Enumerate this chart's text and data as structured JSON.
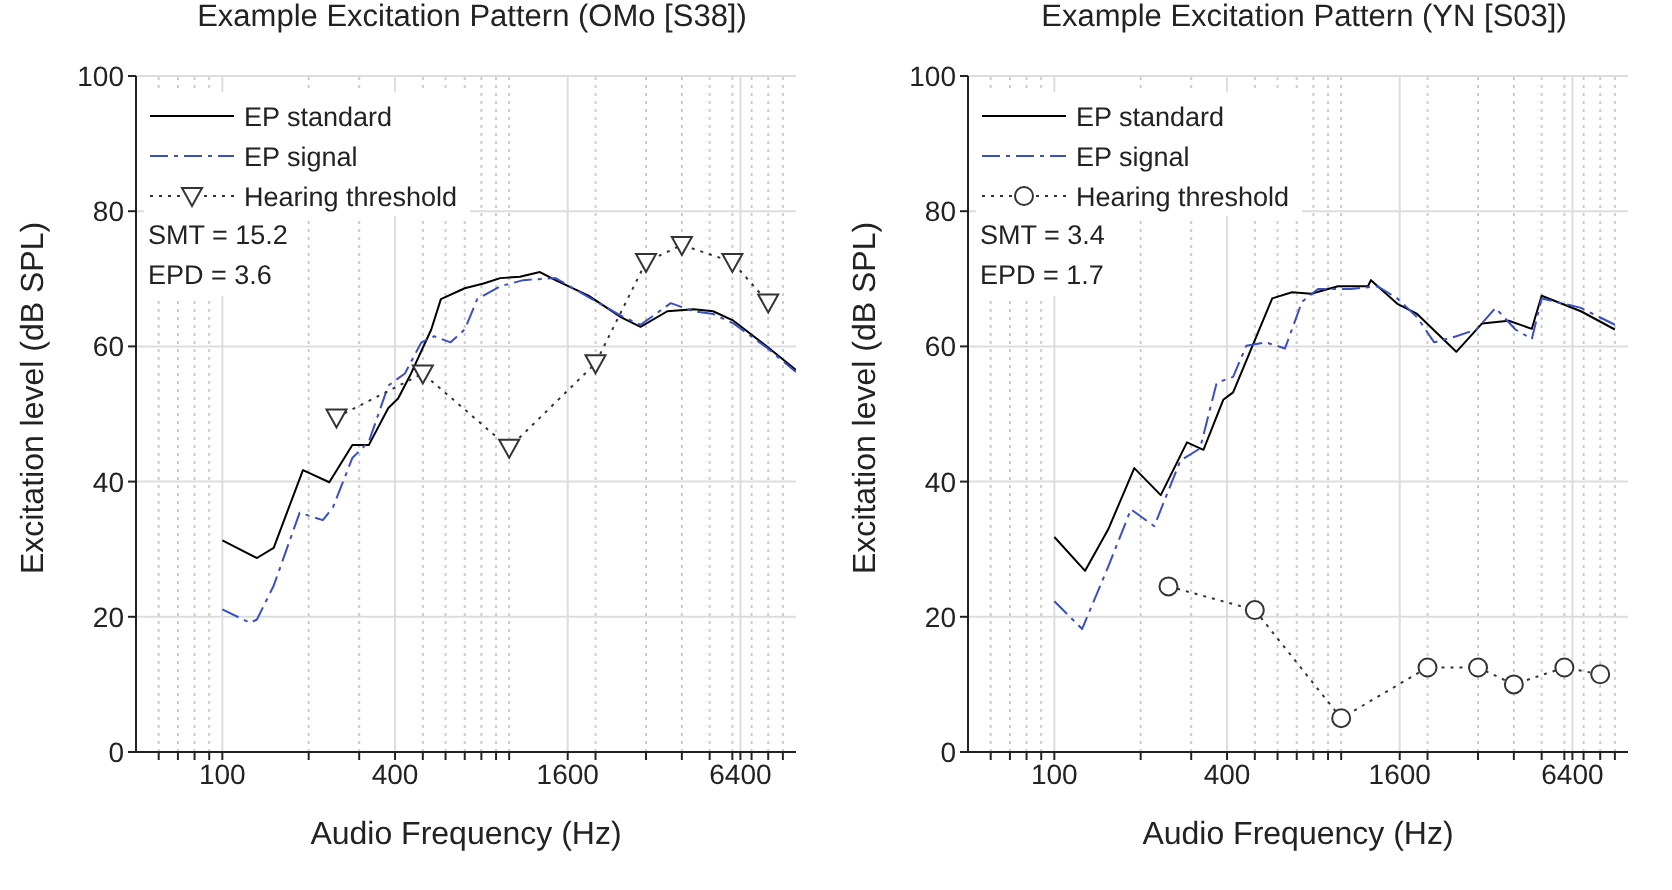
{
  "chart_data": [
    {
      "type": "line",
      "title": "Example Excitation Pattern (OMo [S38])",
      "xlabel": "Audio Frequency (Hz)",
      "ylabel": "Excitation level (dB SPL)",
      "log": "x",
      "grid": true,
      "legend": "top left",
      "xlim": [
        50,
        10000
      ],
      "ylim": [
        0,
        100
      ],
      "yticks": [
        0,
        20,
        40,
        60,
        80,
        100
      ],
      "xticks": [
        {
          "value": 60,
          "label": null
        },
        {
          "value": 70,
          "label": null
        },
        {
          "value": 80,
          "label": null
        },
        {
          "value": 90,
          "label": null
        },
        100,
        {
          "value": 200,
          "label": null
        },
        {
          "value": 300,
          "label": null
        },
        400,
        {
          "value": 500,
          "label": null
        },
        {
          "value": 600,
          "label": null
        },
        {
          "value": 700,
          "label": null
        },
        {
          "value": 800,
          "label": null
        },
        {
          "value": 900,
          "label": null
        },
        {
          "value": 1000,
          "label": null
        },
        1600,
        {
          "value": 2000,
          "label": null
        },
        {
          "value": 3000,
          "label": null
        },
        {
          "value": 4000,
          "label": null
        },
        {
          "value": 5000,
          "label": null
        },
        {
          "value": 6000,
          "label": null
        },
        6400,
        {
          "value": 7000,
          "label": null
        },
        {
          "value": 8000,
          "label": null
        },
        {
          "value": 9000,
          "label": null
        }
      ],
      "annotations": [
        "SMT = 15.2",
        "EPD = 3.6"
      ],
      "series": [
        {
          "name": "EP standard",
          "color": "#000000",
          "line_style": "solid",
          "marker": "none",
          "x": [
            100,
            132,
            151,
            191,
            236,
            284,
            324,
            379,
            410,
            455,
            535,
            578,
            700,
            814,
            931,
            1090,
            1280,
            1450,
            1890,
            2460,
            2870,
            3560,
            4400,
            5140,
            6050,
            7860,
            10000
          ],
          "values": [
            31.3,
            28.7,
            30.2,
            41.7,
            39.9,
            45.4,
            45.4,
            50.9,
            52.3,
            56,
            62.5,
            67,
            68.6,
            69.3,
            70.1,
            70.3,
            71,
            69.8,
            67.5,
            64.3,
            62.9,
            65.2,
            65.5,
            65.2,
            63.8,
            60.1,
            56.5
          ]
        },
        {
          "name": "EP signal",
          "color": "#3a4fc0",
          "line_style": "dashed",
          "marker": "none",
          "x": [
            100,
            125,
            132,
            151,
            186,
            224,
            243,
            284,
            324,
            379,
            433,
            494,
            548,
            625,
            700,
            774,
            931,
            1120,
            1450,
            1890,
            2460,
            2870,
            3660,
            4400,
            5140,
            6050,
            7860,
            10000
          ],
          "values": [
            21.1,
            19.1,
            19.6,
            24.6,
            35.4,
            34.3,
            36.2,
            43.5,
            45.9,
            54.2,
            56,
            60.6,
            61.5,
            60.6,
            62.5,
            67,
            68.9,
            69.8,
            70.1,
            67.3,
            64.5,
            63.2,
            66.4,
            65.2,
            64.8,
            63.4,
            59.9,
            56.2
          ]
        },
        {
          "name": "Hearing threshold",
          "color": "#333333",
          "line_style": "dotted",
          "marker": "triangle",
          "x": [
            250,
            500,
            1000,
            2000,
            3000,
            4000,
            6000,
            8000
          ],
          "values": [
            49.5,
            56,
            45,
            57.5,
            72.5,
            75,
            72.5,
            66.5
          ]
        }
      ]
    },
    {
      "type": "line",
      "title": "Example Excitation Pattern (YN [S03])",
      "xlabel": "Audio Frequency (Hz)",
      "ylabel": "Excitation level (dB SPL)",
      "log": "x",
      "grid": true,
      "legend": "top left",
      "xlim": [
        50,
        10000
      ],
      "ylim": [
        0,
        100
      ],
      "yticks": [
        0,
        20,
        40,
        60,
        80,
        100
      ],
      "xticks": [
        {
          "value": 60,
          "label": null
        },
        {
          "value": 70,
          "label": null
        },
        {
          "value": 80,
          "label": null
        },
        {
          "value": 90,
          "label": null
        },
        100,
        {
          "value": 200,
          "label": null
        },
        {
          "value": 300,
          "label": null
        },
        400,
        {
          "value": 500,
          "label": null
        },
        {
          "value": 600,
          "label": null
        },
        {
          "value": 700,
          "label": null
        },
        {
          "value": 800,
          "label": null
        },
        {
          "value": 900,
          "label": null
        },
        {
          "value": 1000,
          "label": null
        },
        1600,
        {
          "value": 2000,
          "label": null
        },
        {
          "value": 3000,
          "label": null
        },
        {
          "value": 4000,
          "label": null
        },
        {
          "value": 5000,
          "label": null
        },
        {
          "value": 6000,
          "label": null
        },
        6400,
        {
          "value": 7000,
          "label": null
        },
        {
          "value": 8000,
          "label": null
        },
        {
          "value": 9000,
          "label": null
        }
      ],
      "annotations": [
        "SMT = 3.4",
        "EPD = 1.7"
      ],
      "series": [
        {
          "name": "EP standard",
          "color": "#000000",
          "line_style": "solid",
          "marker": "none",
          "x": [
            100,
            128,
            154,
            190,
            235,
            290,
            331,
            388,
            420,
            491,
            575,
            674,
            786,
            975,
            1240,
            1270,
            1570,
            1840,
            2520,
            3100,
            3840,
            4620,
            5000,
            6850,
            9000
          ],
          "values": [
            31.8,
            26.8,
            32.9,
            42,
            38,
            45.8,
            44.7,
            52.1,
            53.2,
            60.1,
            67.1,
            68,
            67.8,
            68.9,
            68.9,
            69.8,
            66.3,
            64.8,
            59.2,
            63.4,
            63.8,
            62.6,
            67.5,
            65.2,
            62.5
          ]
        },
        {
          "name": "EP signal",
          "color": "#3a4fc0",
          "line_style": "dashed",
          "marker": "none",
          "x": [
            100,
            125,
            154,
            185,
            223,
            275,
            322,
            368,
            420,
            467,
            546,
            637,
            730,
            830,
            1080,
            1340,
            1570,
            1840,
            2110,
            2520,
            2960,
            3450,
            4050,
            4620,
            5000,
            6850,
            9000
          ],
          "values": [
            22.3,
            18.2,
            27.4,
            35.9,
            33.4,
            43.1,
            44.9,
            54.6,
            55.5,
            60.1,
            60.6,
            59.7,
            66.6,
            68.5,
            68.5,
            68.9,
            67.1,
            64.3,
            60.6,
            61.5,
            62.5,
            65.7,
            62.5,
            61.1,
            67.1,
            65.7,
            63.2
          ]
        },
        {
          "name": "Hearing threshold",
          "color": "#333333",
          "line_style": "dotted",
          "marker": "circle",
          "x": [
            250,
            500,
            1000,
            2000,
            3000,
            4000,
            6000,
            8000
          ],
          "values": [
            24.5,
            21,
            5,
            12.5,
            12.5,
            10,
            12.5,
            11.5
          ]
        }
      ]
    }
  ]
}
